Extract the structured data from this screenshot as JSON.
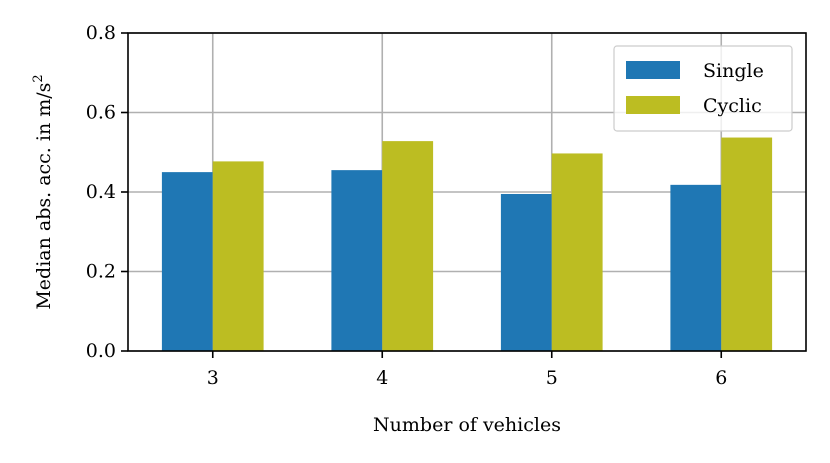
{
  "chart_data": {
    "type": "bar",
    "categories": [
      "3",
      "4",
      "5",
      "6"
    ],
    "series": [
      {
        "name": "Single",
        "values": [
          0.45,
          0.455,
          0.395,
          0.418
        ],
        "color": "#1f77b4"
      },
      {
        "name": "Cyclic",
        "values": [
          0.477,
          0.528,
          0.497,
          0.537
        ],
        "color": "#bcbd22"
      }
    ],
    "xlabel": "Number of vehicles",
    "ylabel": "Median abs. acc. in m/s",
    "ylabel_superscript": "2",
    "ylim": [
      0,
      0.8
    ],
    "yticks": [
      "0.0",
      "0.2",
      "0.4",
      "0.6",
      "0.8"
    ],
    "grid": true,
    "legend_position": "top-right"
  }
}
